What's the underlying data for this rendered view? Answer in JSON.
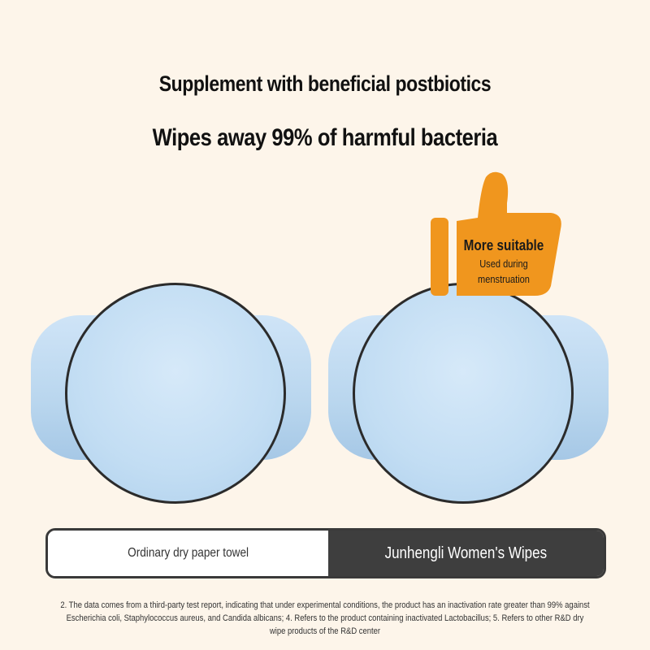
{
  "headline": {
    "line1": "Supplement with beneficial postbiotics",
    "line2": "Wipes away 99% of harmful bacteria"
  },
  "badge": {
    "icon": "thumbs-up-icon",
    "color": "#f0961e",
    "title": "More suitable",
    "subtitle_line1": "Used during",
    "subtitle_line2": "menstruation"
  },
  "comparison": {
    "left_label": "Ordinary dry paper towel",
    "right_label": "Junhengli Women's Wipes"
  },
  "footnote": "2. The data comes from a third-party test report, indicating that under experimental conditions, the product has an inactivation rate greater than 99% against Escherichia coli, Staphylococcus aureus, and Candida albicans; 4. Refers to the product containing inactivated Lactobacillus; 5. Refers to other R&D dry wipe products of the R&D center"
}
